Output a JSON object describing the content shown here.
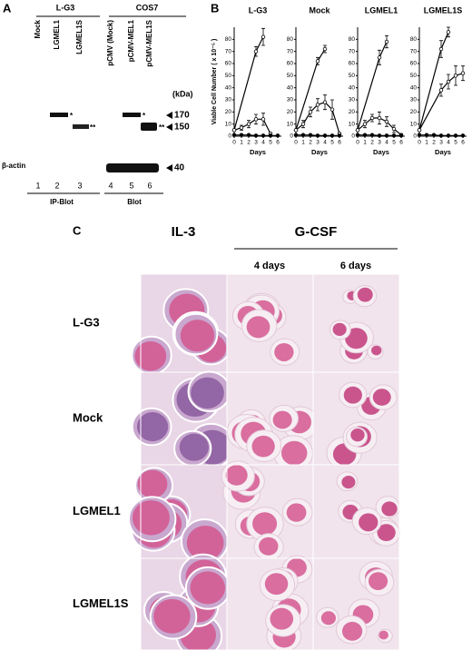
{
  "panel_a": {
    "label": "A",
    "groups": [
      "L-G3",
      "COS7"
    ],
    "lanes": [
      {
        "name": "Mock",
        "number": "1"
      },
      {
        "name": "LGMEL1",
        "number": "2"
      },
      {
        "name": "LGMEL1S",
        "number": "3"
      },
      {
        "name": "pCMV (Mock)",
        "number": "4"
      },
      {
        "name": "pCMV-MEL1",
        "number": "5"
      },
      {
        "name": "pCMV-MEL1S",
        "number": "6"
      }
    ],
    "unit": "(kDa)",
    "markers": [
      "170",
      "150",
      "40"
    ],
    "asterisks": [
      "*",
      "**",
      "*",
      "**"
    ],
    "loading_label": "β-actin",
    "footers": [
      "IP-Blot",
      "Blot"
    ]
  },
  "panel_b": {
    "label": "B"
  },
  "chart_data": [
    {
      "type": "line",
      "title": "L-G3",
      "x_label": "Days",
      "y_label": "Viable Cell Number ( x 10⁻⁵ )",
      "xlim": [
        0,
        6.5
      ],
      "ylim": [
        0,
        90
      ],
      "xticks": [
        0,
        1,
        2,
        3,
        4,
        5,
        6
      ],
      "yticks": [
        0,
        10,
        20,
        30,
        40,
        50,
        60,
        70,
        80
      ],
      "series": [
        {
          "marker": "open",
          "color": "#000000",
          "x": [
            0,
            3,
            4
          ],
          "values": [
            5,
            70,
            82
          ],
          "errors": [
            0,
            4,
            7
          ]
        },
        {
          "marker": "open",
          "color": "#000000",
          "x": [
            0,
            1,
            2,
            3,
            4,
            5
          ],
          "values": [
            5,
            7,
            10,
            14,
            14,
            2
          ],
          "errors": [
            0,
            2,
            3,
            4,
            5,
            1
          ]
        },
        {
          "marker": "filled",
          "color": "#000000",
          "x": [
            0,
            1,
            2,
            3,
            4,
            5,
            6
          ],
          "values": [
            1,
            1,
            1,
            0.5,
            0.5,
            0.5,
            0.5
          ]
        }
      ]
    },
    {
      "type": "line",
      "title": "Mock",
      "x_label": "Days",
      "xlim": [
        0,
        6.5
      ],
      "ylim": [
        0,
        90
      ],
      "xticks": [
        0,
        1,
        2,
        3,
        4,
        5,
        6
      ],
      "yticks": [
        0,
        10,
        20,
        30,
        40,
        50,
        60,
        70,
        80
      ],
      "series": [
        {
          "marker": "open",
          "color": "#000000",
          "x": [
            0,
            3,
            4
          ],
          "values": [
            5,
            62,
            72
          ],
          "errors": [
            0,
            3,
            3
          ]
        },
        {
          "marker": "open",
          "color": "#000000",
          "x": [
            0,
            1,
            2,
            3,
            4,
            5,
            6
          ],
          "values": [
            5,
            10,
            20,
            26,
            28,
            22,
            2
          ],
          "errors": [
            0,
            3,
            4,
            5,
            6,
            8,
            1
          ]
        },
        {
          "marker": "filled",
          "color": "#000000",
          "x": [
            0,
            1,
            2,
            3,
            4,
            5,
            6
          ],
          "values": [
            1,
            1,
            1,
            0.5,
            0.5,
            0.5,
            0.5
          ]
        }
      ]
    },
    {
      "type": "line",
      "title": "LGMEL1",
      "x_label": "Days",
      "xlim": [
        0,
        6.5
      ],
      "ylim": [
        0,
        90
      ],
      "xticks": [
        0,
        1,
        2,
        3,
        4,
        5,
        6
      ],
      "yticks": [
        0,
        10,
        20,
        30,
        40,
        50,
        60,
        70,
        80
      ],
      "series": [
        {
          "marker": "open",
          "color": "#000000",
          "x": [
            0,
            3,
            4
          ],
          "values": [
            5,
            65,
            78
          ],
          "errors": [
            0,
            6,
            5
          ]
        },
        {
          "marker": "open",
          "color": "#000000",
          "x": [
            0,
            1,
            2,
            3,
            4,
            5,
            6
          ],
          "values": [
            5,
            10,
            15,
            15,
            12,
            6,
            1
          ],
          "errors": [
            0,
            3,
            3,
            5,
            4,
            3,
            1
          ]
        },
        {
          "marker": "filled",
          "color": "#000000",
          "x": [
            0,
            1,
            2,
            3,
            4,
            5,
            6
          ],
          "values": [
            1,
            1,
            1,
            0.5,
            0.5,
            0.5,
            0.5
          ]
        }
      ]
    },
    {
      "type": "line",
      "title": "LGMEL1S",
      "x_label": "Days",
      "xlim": [
        0,
        6.5
      ],
      "ylim": [
        0,
        90
      ],
      "xticks": [
        0,
        1,
        2,
        3,
        4,
        5,
        6
      ],
      "yticks": [
        0,
        10,
        20,
        30,
        40,
        50,
        60,
        70,
        80
      ],
      "series": [
        {
          "marker": "open",
          "color": "#000000",
          "x": [
            0,
            3,
            4
          ],
          "values": [
            5,
            72,
            86
          ],
          "errors": [
            0,
            7,
            4
          ]
        },
        {
          "marker": "open",
          "color": "#000000",
          "x": [
            0,
            3,
            4,
            5,
            6
          ],
          "values": [
            5,
            38,
            45,
            50,
            52
          ],
          "errors": [
            0,
            5,
            6,
            8,
            6
          ]
        },
        {
          "marker": "filled",
          "color": "#000000",
          "x": [
            0,
            1,
            2,
            3,
            4,
            5,
            6
          ],
          "values": [
            1,
            1,
            1,
            0.5,
            0.5,
            0.5,
            0.5
          ]
        }
      ]
    }
  ],
  "panel_c": {
    "label": "C",
    "columns": [
      "IL-3"
    ],
    "group": "G-CSF",
    "subcolumns": [
      "4 days",
      "6 days"
    ],
    "rows": [
      "L-G3",
      "Mock",
      "LGMEL1",
      "LGMEL1S"
    ]
  }
}
